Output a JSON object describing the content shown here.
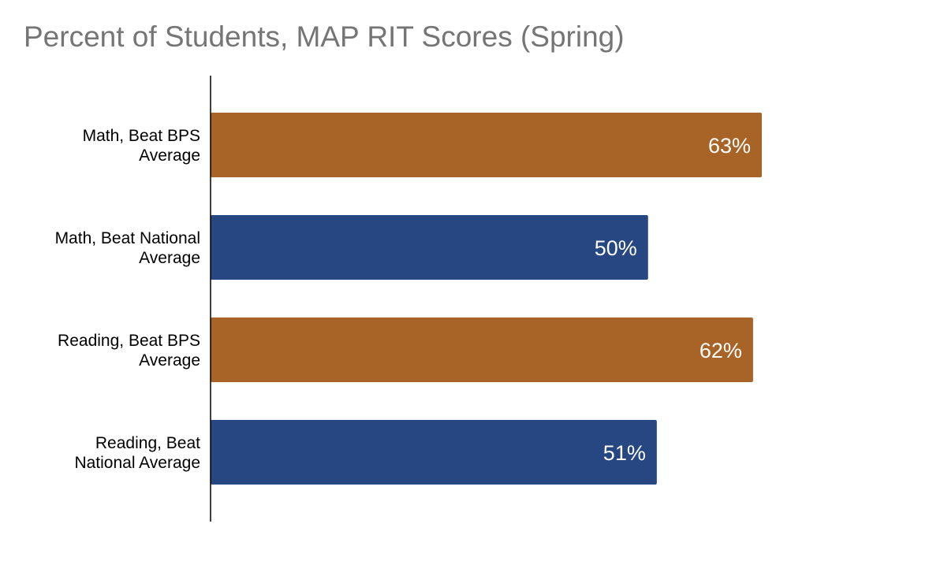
{
  "chart_data": {
    "type": "bar",
    "orientation": "horizontal",
    "title": "Percent of Students, MAP RIT Scores (Spring)",
    "categories": [
      [
        "Math, Beat BPS",
        "Average"
      ],
      [
        "Math, Beat National",
        "Average"
      ],
      [
        "Reading, Beat BPS",
        "Average"
      ],
      [
        "Reading, Beat",
        "National Average"
      ]
    ],
    "values": [
      63,
      50,
      62,
      51
    ],
    "data_labels": [
      "63%",
      "50%",
      "62%",
      "51%"
    ],
    "bar_colors": [
      "#A86426",
      "#264782",
      "#A86426",
      "#264782"
    ],
    "xlim": [
      0,
      100
    ],
    "grid": false,
    "legend": "none"
  }
}
